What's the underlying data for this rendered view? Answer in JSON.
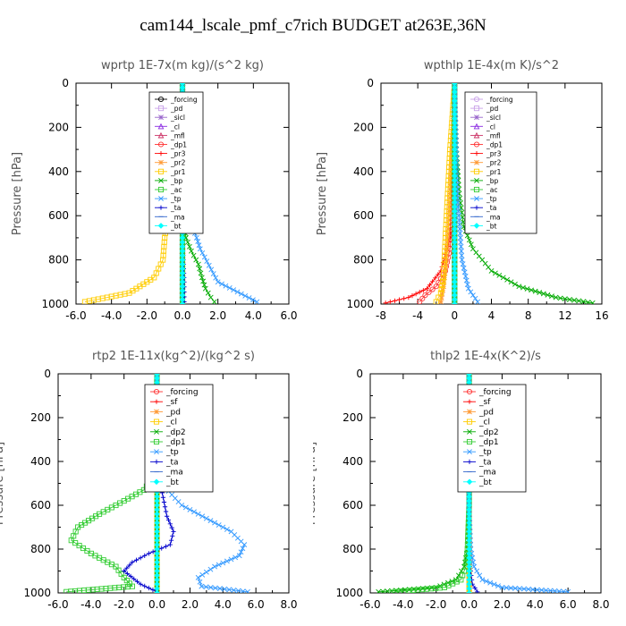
{
  "title": "cam144_lscale_pmf_c7rich  BUDGET at263E,36N",
  "chart_data": [
    {
      "type": "line",
      "title": "wprtp   1E-7x(m kg)/(s^2 kg)",
      "ylabel": "Pressure [hPa]",
      "xlim": [
        -6,
        6
      ],
      "ylim": [
        1000,
        0
      ],
      "xticks": [
        "-6.0",
        "-4.0",
        "-2.0",
        "0.0",
        "2.0",
        "4.0",
        "6.0"
      ],
      "yticks": [
        "0",
        "200",
        "400",
        "600",
        "800",
        "1000"
      ],
      "legend": "top-right",
      "series": [
        {
          "name": "_forcing",
          "color": "#000000",
          "marker": "circle",
          "x": [
            0,
            0,
            0,
            0,
            0,
            0,
            0,
            0,
            0,
            0,
            0,
            0,
            0,
            0,
            0
          ],
          "y": [
            0,
            70,
            140,
            210,
            280,
            350,
            420,
            490,
            560,
            630,
            700,
            770,
            840,
            910,
            990
          ]
        },
        {
          "name": "_pd",
          "color": "#c8a0e8",
          "marker": "square",
          "x": [
            0,
            0,
            0
          ],
          "y": [
            0,
            500,
            1000
          ]
        },
        {
          "name": "_sicl",
          "color": "#9966cc",
          "marker": "star",
          "x": [
            0,
            0,
            0
          ],
          "y": [
            0,
            500,
            1000
          ]
        },
        {
          "name": "_cl",
          "color": "#8a2be2",
          "marker": "triangle",
          "x": [
            0,
            0,
            0
          ],
          "y": [
            0,
            500,
            1000
          ]
        },
        {
          "name": "_mfl",
          "color": "#cc3366",
          "marker": "triangle",
          "x": [
            0,
            0,
            0
          ],
          "y": [
            0,
            500,
            1000
          ]
        },
        {
          "name": "_dp1",
          "color": "#ff3333",
          "marker": "circle",
          "x": [
            0,
            0,
            0
          ],
          "y": [
            0,
            500,
            1000
          ]
        },
        {
          "name": "_pr3",
          "color": "#ff0000",
          "marker": "plus",
          "x": [
            0,
            0,
            0
          ],
          "y": [
            0,
            500,
            1000
          ]
        },
        {
          "name": "_pr2",
          "color": "#ff9933",
          "marker": "star",
          "x": [
            0,
            0,
            0
          ],
          "y": [
            0,
            500,
            1000
          ]
        },
        {
          "name": "_pr1",
          "color": "#ffcc00",
          "marker": "square",
          "x": [
            0,
            0,
            -0.1,
            -0.3,
            -0.6,
            -0.9,
            -1.0,
            -1.1,
            -1.6,
            -3.0,
            -5.5
          ],
          "y": [
            0,
            200,
            400,
            500,
            560,
            640,
            700,
            800,
            880,
            950,
            990
          ]
        },
        {
          "name": "_bp",
          "color": "#00aa00",
          "marker": "x",
          "x": [
            0,
            0,
            0.05,
            0.2,
            0.5,
            0.9,
            1.1,
            1.3,
            1.6,
            1.8
          ],
          "y": [
            0,
            400,
            600,
            700,
            760,
            820,
            880,
            930,
            970,
            990
          ]
        },
        {
          "name": "_ac",
          "color": "#33cc33",
          "marker": "square",
          "x": [
            0,
            0,
            0
          ],
          "y": [
            0,
            500,
            1000
          ]
        },
        {
          "name": "_tp",
          "color": "#3399ff",
          "marker": "x",
          "x": [
            0,
            0,
            0.2,
            0.5,
            0.8,
            1.0,
            2.0,
            4.2
          ],
          "y": [
            0,
            500,
            600,
            640,
            700,
            750,
            900,
            990
          ]
        },
        {
          "name": "_ta",
          "color": "#0000cc",
          "marker": "plus",
          "x": [
            0,
            0,
            0,
            0.05,
            0.1,
            0.1
          ],
          "y": [
            0,
            500,
            700,
            800,
            900,
            990
          ]
        },
        {
          "name": "_ma",
          "color": "#3366cc",
          "marker": "dash",
          "x": [
            0,
            0,
            0
          ],
          "y": [
            0,
            500,
            1000
          ]
        },
        {
          "name": "_bt",
          "color": "#00ffff",
          "marker": "diamond",
          "x": [
            0,
            0,
            0
          ],
          "y": [
            0,
            500,
            1000
          ]
        }
      ]
    },
    {
      "type": "line",
      "title": "wpthlp   1E-4x(m K)/s^2",
      "ylabel": "Pressure [hPa]",
      "xlim": [
        -8,
        16
      ],
      "ylim": [
        1000,
        0
      ],
      "xticks": [
        "-8",
        "-4",
        "0",
        "4",
        "8",
        "12",
        "16"
      ],
      "yticks": [
        "0",
        "200",
        "400",
        "600",
        "800",
        "1000"
      ],
      "legend": "top-right",
      "series": [
        {
          "name": "_forcing",
          "color": "#c8a0e8",
          "marker": "circle",
          "x": [
            0,
            0,
            0
          ],
          "y": [
            0,
            500,
            1000
          ]
        },
        {
          "name": "_pd",
          "color": "#c8a0e8",
          "marker": "square",
          "x": [
            0,
            0,
            0
          ],
          "y": [
            0,
            500,
            1000
          ]
        },
        {
          "name": "_sicl",
          "color": "#9966cc",
          "marker": "star",
          "x": [
            0,
            0,
            0
          ],
          "y": [
            0,
            500,
            1000
          ]
        },
        {
          "name": "_cl",
          "color": "#8a2be2",
          "marker": "triangle",
          "x": [
            0,
            0,
            0
          ],
          "y": [
            0,
            500,
            1000
          ]
        },
        {
          "name": "_mfl",
          "color": "#cc3366",
          "marker": "triangle",
          "x": [
            0,
            0,
            0
          ],
          "y": [
            0,
            500,
            1000
          ]
        },
        {
          "name": "_dp1",
          "color": "#ff3333",
          "marker": "circle",
          "x": [
            0,
            -0.2,
            -0.5,
            -1.0,
            -2.0,
            -3.2,
            -3.8
          ],
          "y": [
            0,
            600,
            750,
            850,
            920,
            960,
            990
          ]
        },
        {
          "name": "_pr3",
          "color": "#ff0000",
          "marker": "plus",
          "x": [
            0,
            -0.5,
            -1.5,
            -3.0,
            -5.0,
            -7.5
          ],
          "y": [
            0,
            700,
            850,
            930,
            970,
            995
          ]
        },
        {
          "name": "_pr2",
          "color": "#ff9933",
          "marker": "star",
          "x": [
            0,
            -0.3,
            -0.6,
            -0.9,
            -1.2,
            -1.5
          ],
          "y": [
            0,
            300,
            600,
            800,
            920,
            990
          ]
        },
        {
          "name": "_pr1",
          "color": "#ffcc00",
          "marker": "square",
          "x": [
            0,
            -0.5,
            -1.0,
            -1.2,
            -1.5,
            -2.0
          ],
          "y": [
            0,
            300,
            700,
            880,
            950,
            990
          ]
        },
        {
          "name": "_bp",
          "color": "#00aa00",
          "marker": "x",
          "x": [
            0,
            0.2,
            0.5,
            1.0,
            2.0,
            4.0,
            7.0,
            11.0,
            15.0
          ],
          "y": [
            0,
            300,
            500,
            650,
            750,
            850,
            920,
            970,
            995
          ]
        },
        {
          "name": "_ac",
          "color": "#33cc33",
          "marker": "square",
          "x": [
            0,
            0,
            0
          ],
          "y": [
            0,
            500,
            1000
          ]
        },
        {
          "name": "_tp",
          "color": "#3399ff",
          "marker": "x",
          "x": [
            0,
            0.3,
            0.8,
            1.5,
            2.5
          ],
          "y": [
            0,
            500,
            800,
            930,
            990
          ]
        },
        {
          "name": "_ta",
          "color": "#0000cc",
          "marker": "plus",
          "x": [
            0,
            0,
            0
          ],
          "y": [
            0,
            500,
            1000
          ]
        },
        {
          "name": "_ma",
          "color": "#3366cc",
          "marker": "dash",
          "x": [
            0,
            0,
            0
          ],
          "y": [
            0,
            500,
            1000
          ]
        },
        {
          "name": "_bt",
          "color": "#00ffff",
          "marker": "diamond",
          "x": [
            0,
            0,
            0
          ],
          "y": [
            0,
            500,
            1000
          ]
        }
      ]
    },
    {
      "type": "line",
      "title": "rtp2   1E-11x(kg^2)/(kg^2 s)",
      "ylabel": "Pressure [hPa]",
      "xlim": [
        -6,
        8
      ],
      "ylim": [
        1000,
        0
      ],
      "xticks": [
        "-6.0",
        "-4.0",
        "-2.0",
        "0.0",
        "2.0",
        "4.0",
        "6.0",
        "8.0"
      ],
      "yticks": [
        "0",
        "200",
        "400",
        "600",
        "800",
        "1000"
      ],
      "legend": "top-right",
      "series": [
        {
          "name": "_forcing",
          "color": "#ff3333",
          "marker": "circle",
          "x": [
            0,
            0,
            0,
            0,
            0,
            0,
            0,
            0,
            0,
            0,
            0,
            0,
            0,
            0,
            0
          ],
          "y": [
            0,
            70,
            140,
            210,
            280,
            350,
            420,
            490,
            560,
            630,
            700,
            770,
            840,
            910,
            990
          ]
        },
        {
          "name": "_sf",
          "color": "#ff0000",
          "marker": "plus",
          "x": [
            0,
            0,
            0
          ],
          "y": [
            0,
            500,
            1000
          ]
        },
        {
          "name": "_pd",
          "color": "#ff9933",
          "marker": "star",
          "x": [
            0,
            0,
            0
          ],
          "y": [
            0,
            500,
            1000
          ]
        },
        {
          "name": "_cl",
          "color": "#ffcc00",
          "marker": "square",
          "x": [
            0,
            0,
            0
          ],
          "y": [
            0,
            500,
            1000
          ]
        },
        {
          "name": "_dp2",
          "color": "#00aa00",
          "marker": "x",
          "x": [
            0,
            0,
            0
          ],
          "y": [
            0,
            500,
            1000
          ]
        },
        {
          "name": "_dp1",
          "color": "#33cc33",
          "marker": "square",
          "x": [
            0,
            -0.1,
            -0.3,
            -0.8,
            -2.0,
            -3.5,
            -4.8,
            -5.2,
            -4.0,
            -2.5,
            -2.0,
            -1.5,
            -5.5
          ],
          "y": [
            0,
            400,
            480,
            530,
            580,
            640,
            700,
            760,
            820,
            880,
            930,
            970,
            995
          ]
        },
        {
          "name": "_tp",
          "color": "#3399ff",
          "marker": "x",
          "x": [
            0,
            0.1,
            0.5,
            1.5,
            3.0,
            4.5,
            5.3,
            5.0,
            3.5,
            2.5,
            2.7,
            5.5
          ],
          "y": [
            0,
            400,
            520,
            600,
            660,
            720,
            780,
            830,
            880,
            930,
            970,
            995
          ]
        },
        {
          "name": "_ta",
          "color": "#0000cc",
          "marker": "plus",
          "x": [
            0,
            0.2,
            0.6,
            1.0,
            0.8,
            -0.5,
            -1.5,
            -2.0,
            -1.0,
            0
          ],
          "y": [
            0,
            500,
            650,
            720,
            780,
            820,
            860,
            900,
            960,
            995
          ]
        },
        {
          "name": "_ma",
          "color": "#3366cc",
          "marker": "dash",
          "x": [
            0,
            0,
            0
          ],
          "y": [
            0,
            500,
            1000
          ]
        },
        {
          "name": "_bt",
          "color": "#00ffff",
          "marker": "diamond",
          "x": [
            0,
            0,
            0
          ],
          "y": [
            0,
            500,
            1000
          ]
        }
      ]
    },
    {
      "type": "line",
      "title": "thlp2   1E-4x(K^2)/s",
      "ylabel": "Pressure [hPa]",
      "xlim": [
        -6,
        8
      ],
      "ylim": [
        1000,
        0
      ],
      "xticks": [
        "-6.0",
        "-4.0",
        "-2.0",
        "0.0",
        "2.0",
        "4.0",
        "6.0",
        "8.0"
      ],
      "yticks": [
        "0",
        "200",
        "400",
        "600",
        "800",
        "1000"
      ],
      "legend": "top-right",
      "series": [
        {
          "name": "_forcing",
          "color": "#ff3333",
          "marker": "circle",
          "x": [
            0,
            0,
            0,
            0,
            0,
            0,
            0,
            0,
            0,
            0,
            0,
            0,
            0,
            0,
            0
          ],
          "y": [
            0,
            70,
            140,
            210,
            280,
            350,
            420,
            490,
            560,
            630,
            700,
            770,
            840,
            910,
            990
          ]
        },
        {
          "name": "_sf",
          "color": "#ff0000",
          "marker": "plus",
          "x": [
            0,
            0,
            0
          ],
          "y": [
            0,
            500,
            1000
          ]
        },
        {
          "name": "_pd",
          "color": "#ff9933",
          "marker": "star",
          "x": [
            0,
            0,
            0
          ],
          "y": [
            0,
            500,
            1000
          ]
        },
        {
          "name": "_cl",
          "color": "#ffcc00",
          "marker": "square",
          "x": [
            0,
            0,
            0
          ],
          "y": [
            0,
            500,
            1000
          ]
        },
        {
          "name": "_dp2",
          "color": "#00aa00",
          "marker": "x",
          "x": [
            0,
            0,
            -0.1,
            -0.3,
            -0.8,
            -2.0,
            -5.5
          ],
          "y": [
            0,
            600,
            800,
            880,
            940,
            975,
            995
          ]
        },
        {
          "name": "_dp1",
          "color": "#33cc33",
          "marker": "square",
          "x": [
            0,
            0,
            -0.1,
            -0.2,
            -0.5,
            -1.5,
            -4.5
          ],
          "y": [
            0,
            600,
            800,
            880,
            940,
            975,
            995
          ]
        },
        {
          "name": "_tp",
          "color": "#3399ff",
          "marker": "x",
          "x": [
            0,
            0,
            0.1,
            0.3,
            0.8,
            2.0,
            6.0
          ],
          "y": [
            0,
            600,
            800,
            880,
            940,
            975,
            995
          ]
        },
        {
          "name": "_ta",
          "color": "#0000cc",
          "marker": "plus",
          "x": [
            0,
            0,
            0.05,
            0.2,
            0.5
          ],
          "y": [
            0,
            700,
            880,
            960,
            995
          ]
        },
        {
          "name": "_ma",
          "color": "#3366cc",
          "marker": "dash",
          "x": [
            0,
            0,
            0
          ],
          "y": [
            0,
            500,
            1000
          ]
        },
        {
          "name": "_bt",
          "color": "#00ffff",
          "marker": "diamond",
          "x": [
            0,
            0,
            0
          ],
          "y": [
            0,
            500,
            1000
          ]
        }
      ]
    }
  ]
}
